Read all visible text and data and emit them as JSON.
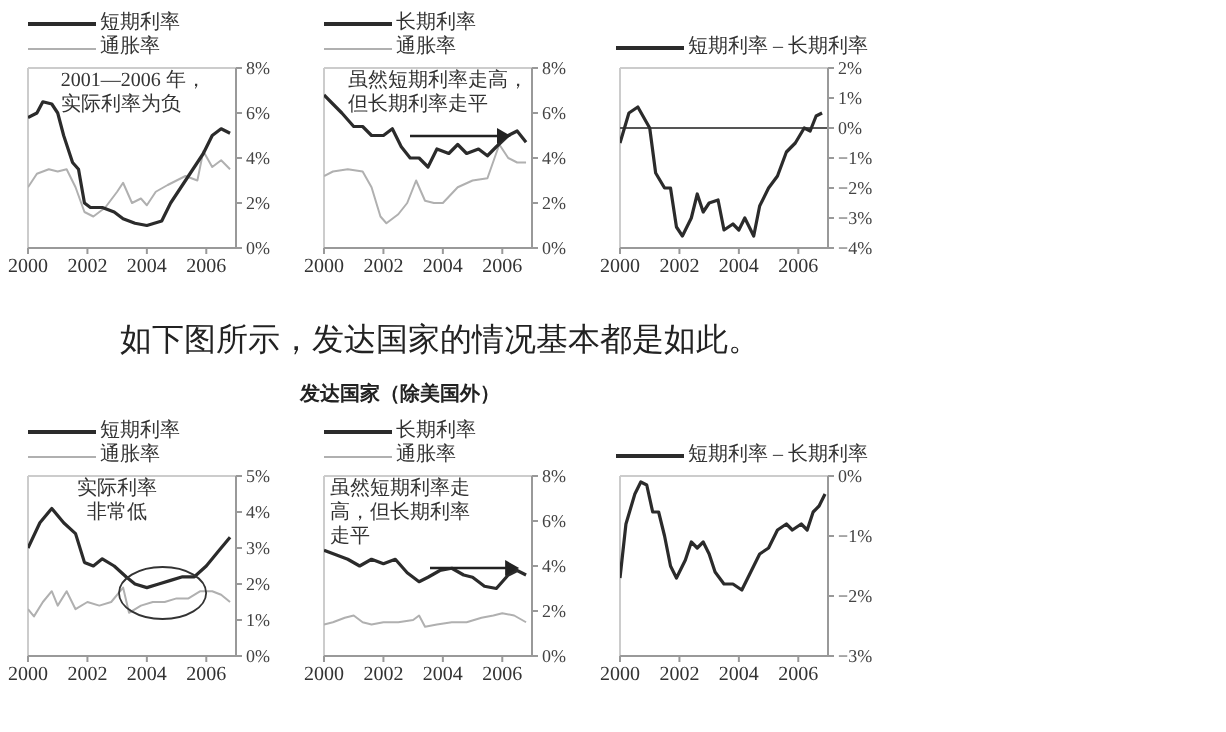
{
  "chart_data": [
    {
      "type": "line",
      "legend": "top left",
      "xlim": [
        2000,
        2007
      ],
      "xticks": [
        2000,
        2002,
        2004,
        2006
      ],
      "ylim": [
        0,
        8
      ],
      "yticks": [
        {
          "value": 0,
          "label": "0%"
        },
        {
          "value": 2,
          "label": "2%"
        },
        {
          "value": 4,
          "label": "4%"
        },
        {
          "value": 6,
          "label": "6%"
        },
        {
          "value": 8,
          "label": "8%"
        }
      ],
      "annotations": [
        "2001—2006 年，实际利率为负"
      ],
      "series": [
        {
          "name": "短期利率",
          "color": "#2b2b2b",
          "x": [
            2000,
            2000.3,
            2000.5,
            2000.8,
            2001,
            2001.2,
            2001.5,
            2001.7,
            2001.9,
            2002.1,
            2002.5,
            2002.9,
            2003.2,
            2003.6,
            2004,
            2004.5,
            2004.8,
            2005.2,
            2005.5,
            2005.9,
            2006.2,
            2006.5,
            2006.8
          ],
          "values": [
            5.8,
            6,
            6.5,
            6.4,
            6,
            5,
            3.8,
            3.5,
            2,
            1.8,
            1.8,
            1.6,
            1.3,
            1.1,
            1,
            1.2,
            2,
            2.8,
            3.4,
            4.2,
            5,
            5.3,
            5.1
          ]
        },
        {
          "name": "通胀率",
          "color": "#b0b0b0",
          "x": [
            2000,
            2000.3,
            2000.7,
            2001,
            2001.3,
            2001.6,
            2001.9,
            2002.2,
            2002.6,
            2003,
            2003.2,
            2003.5,
            2003.8,
            2004,
            2004.3,
            2004.7,
            2005,
            2005.3,
            2005.7,
            2005.9,
            2006.2,
            2006.5,
            2006.8
          ],
          "values": [
            2.7,
            3.3,
            3.5,
            3.4,
            3.5,
            2.7,
            1.6,
            1.4,
            1.8,
            2.5,
            2.9,
            2,
            2.2,
            1.9,
            2.5,
            2.8,
            3,
            3.2,
            3,
            4.3,
            3.6,
            3.9,
            3.5
          ]
        }
      ]
    },
    {
      "type": "line",
      "legend": "top left",
      "xlim": [
        2000,
        2007
      ],
      "xticks": [
        2000,
        2002,
        2004,
        2006
      ],
      "ylim": [
        0,
        8
      ],
      "yticks": [
        {
          "value": 0,
          "label": "0%"
        },
        {
          "value": 2,
          "label": "2%"
        },
        {
          "value": 4,
          "label": "4%"
        },
        {
          "value": 6,
          "label": "6%"
        },
        {
          "value": 8,
          "label": "8%"
        }
      ],
      "annotations": [
        "虽然短期利率走高，但长期利率走平"
      ],
      "series": [
        {
          "name": "长期利率",
          "color": "#2b2b2b",
          "x": [
            2000,
            2000.3,
            2000.6,
            2001,
            2001.3,
            2001.6,
            2002,
            2002.3,
            2002.6,
            2002.9,
            2003.2,
            2003.5,
            2003.8,
            2004.2,
            2004.5,
            2004.8,
            2005.2,
            2005.5,
            2005.8,
            2006.2,
            2006.5,
            2006.8
          ],
          "values": [
            6.8,
            6.4,
            6,
            5.4,
            5.4,
            5,
            5,
            5.3,
            4.5,
            4,
            4,
            3.6,
            4.4,
            4.2,
            4.6,
            4.2,
            4.4,
            4.1,
            4.5,
            5,
            5.2,
            4.7
          ]
        },
        {
          "name": "通胀率",
          "color": "#b0b0b0",
          "x": [
            2000,
            2000.3,
            2000.8,
            2001.3,
            2001.6,
            2001.9,
            2002.1,
            2002.5,
            2002.8,
            2003.1,
            2003.4,
            2003.7,
            2004,
            2004.5,
            2005,
            2005.5,
            2005.9,
            2006.2,
            2006.5,
            2006.8
          ],
          "values": [
            3.2,
            3.4,
            3.5,
            3.4,
            2.7,
            1.4,
            1.1,
            1.5,
            2,
            3,
            2.1,
            2,
            2,
            2.7,
            3,
            3.1,
            4.6,
            4,
            3.8,
            3.8
          ]
        }
      ]
    },
    {
      "type": "line",
      "legend": "top",
      "xlim": [
        2000,
        2007
      ],
      "xticks": [
        2000,
        2002,
        2004,
        2006
      ],
      "ylim": [
        -4,
        2
      ],
      "yticks": [
        {
          "value": -4,
          "label": "−4%"
        },
        {
          "value": -3,
          "label": "−3%"
        },
        {
          "value": -2,
          "label": "−2%"
        },
        {
          "value": -1,
          "label": "−1%"
        },
        {
          "value": 0,
          "label": "0%"
        },
        {
          "value": 1,
          "label": "1%"
        },
        {
          "value": 2,
          "label": "2%"
        }
      ],
      "ref_lines": [
        {
          "axis": "y",
          "value": 0,
          "label": null,
          "color": "#555555"
        }
      ],
      "series": [
        {
          "name": "短期利率 – 长期利率",
          "color": "#2b2b2b",
          "x": [
            2000,
            2000.3,
            2000.6,
            2001,
            2001.2,
            2001.5,
            2001.7,
            2001.9,
            2002.1,
            2002.4,
            2002.6,
            2002.8,
            2003,
            2003.3,
            2003.5,
            2003.8,
            2004,
            2004.2,
            2004.5,
            2004.7,
            2005,
            2005.3,
            2005.6,
            2005.9,
            2006.2,
            2006.4,
            2006.6,
            2006.8
          ],
          "values": [
            -0.5,
            0.5,
            0.7,
            0,
            -1.5,
            -2,
            -2,
            -3.3,
            -3.6,
            -3,
            -2.2,
            -2.8,
            -2.5,
            -2.4,
            -3.4,
            -3.2,
            -3.4,
            -3,
            -3.6,
            -2.6,
            -2,
            -1.6,
            -0.8,
            -0.5,
            0,
            -0.1,
            0.4,
            0.5
          ]
        }
      ]
    },
    {
      "type": "line",
      "title": "如下图所示，发达国家的情况基本都是如此。",
      "legend": "top left",
      "xlim": [
        2000,
        2007
      ],
      "xticks": [
        2000,
        2002,
        2004,
        2006
      ],
      "ylim": [
        0,
        5
      ],
      "yticks": [
        {
          "value": 0,
          "label": "0%"
        },
        {
          "value": 1,
          "label": "1%"
        },
        {
          "value": 2,
          "label": "2%"
        },
        {
          "value": 3,
          "label": "3%"
        },
        {
          "value": 4,
          "label": "4%"
        },
        {
          "value": 5,
          "label": "5%"
        }
      ],
      "annotations": [
        "实际利率非常低"
      ],
      "series": [
        {
          "name": "短期利率",
          "color": "#2b2b2b",
          "x": [
            2000,
            2000.4,
            2000.8,
            2001.2,
            2001.6,
            2001.9,
            2002.2,
            2002.5,
            2002.9,
            2003.3,
            2003.6,
            2004,
            2004.4,
            2004.8,
            2005.2,
            2005.6,
            2006,
            2006.4,
            2006.8
          ],
          "values": [
            3,
            3.7,
            4.1,
            3.7,
            3.4,
            2.6,
            2.5,
            2.7,
            2.5,
            2.2,
            2,
            1.9,
            2,
            2.1,
            2.2,
            2.2,
            2.5,
            2.9,
            3.3
          ]
        },
        {
          "name": "通胀率",
          "color": "#b0b0b0",
          "x": [
            2000,
            2000.2,
            2000.5,
            2000.8,
            2001,
            2001.3,
            2001.6,
            2002,
            2002.4,
            2002.8,
            2003.2,
            2003.4,
            2003.8,
            2004.2,
            2004.6,
            2005,
            2005.4,
            2005.8,
            2006.2,
            2006.5,
            2006.8
          ],
          "values": [
            1.3,
            1.1,
            1.5,
            1.8,
            1.4,
            1.8,
            1.3,
            1.5,
            1.4,
            1.5,
            1.9,
            1.2,
            1.4,
            1.5,
            1.5,
            1.6,
            1.6,
            1.8,
            1.8,
            1.7,
            1.5
          ]
        }
      ]
    },
    {
      "type": "line",
      "title": "发达国家（除美国外）",
      "legend": "top left",
      "xlim": [
        2000,
        2007
      ],
      "xticks": [
        2000,
        2002,
        2004,
        2006
      ],
      "ylim": [
        0,
        8
      ],
      "yticks": [
        {
          "value": 0,
          "label": "0%"
        },
        {
          "value": 2,
          "label": "2%"
        },
        {
          "value": 4,
          "label": "4%"
        },
        {
          "value": 6,
          "label": "6%"
        },
        {
          "value": 8,
          "label": "8%"
        }
      ],
      "annotations": [
        "虽然短期利率走高，但长期利率走平"
      ],
      "series": [
        {
          "name": "长期利率",
          "color": "#2b2b2b",
          "x": [
            2000,
            2000.4,
            2000.8,
            2001.2,
            2001.6,
            2002,
            2002.4,
            2002.8,
            2003.2,
            2003.5,
            2003.9,
            2004.3,
            2004.7,
            2005,
            2005.4,
            2005.8,
            2006.2,
            2006.5,
            2006.8
          ],
          "values": [
            4.7,
            4.5,
            4.3,
            4,
            4.3,
            4.1,
            4.3,
            3.7,
            3.3,
            3.5,
            3.8,
            3.9,
            3.6,
            3.5,
            3.1,
            3,
            3.6,
            3.8,
            3.6
          ]
        },
        {
          "name": "通胀率",
          "color": "#b0b0b0",
          "x": [
            2000,
            2000.3,
            2000.7,
            2001,
            2001.3,
            2001.6,
            2002,
            2002.5,
            2003,
            2003.2,
            2003.4,
            2003.8,
            2004.3,
            2004.8,
            2005.3,
            2005.7,
            2006,
            2006.4,
            2006.8
          ],
          "values": [
            1.4,
            1.5,
            1.7,
            1.8,
            1.5,
            1.4,
            1.5,
            1.5,
            1.6,
            1.8,
            1.3,
            1.4,
            1.5,
            1.5,
            1.7,
            1.8,
            1.9,
            1.8,
            1.5
          ]
        }
      ]
    },
    {
      "type": "line",
      "legend": "top",
      "xlim": [
        2000,
        2007
      ],
      "xticks": [
        2000,
        2002,
        2004,
        2006
      ],
      "ylim": [
        -3,
        0
      ],
      "yticks": [
        {
          "value": -3,
          "label": "−3%"
        },
        {
          "value": -2,
          "label": "−2%"
        },
        {
          "value": -1,
          "label": "−1%"
        },
        {
          "value": 0,
          "label": "0%"
        }
      ],
      "series": [
        {
          "name": "短期利率 – 长期利率",
          "color": "#2b2b2b",
          "x": [
            2000,
            2000.2,
            2000.5,
            2000.7,
            2000.9,
            2001.1,
            2001.3,
            2001.5,
            2001.7,
            2001.9,
            2002.2,
            2002.4,
            2002.6,
            2002.8,
            2003,
            2003.2,
            2003.5,
            2003.8,
            2004.1,
            2004.4,
            2004.7,
            2005,
            2005.3,
            2005.6,
            2005.8,
            2006.1,
            2006.3,
            2006.5,
            2006.7,
            2006.9
          ],
          "values": [
            -1.7,
            -0.8,
            -0.3,
            -0.1,
            -0.15,
            -0.6,
            -0.6,
            -1,
            -1.5,
            -1.7,
            -1.4,
            -1.1,
            -1.2,
            -1.1,
            -1.3,
            -1.6,
            -1.8,
            -1.8,
            -1.9,
            -1.6,
            -1.3,
            -1.2,
            -0.9,
            -0.8,
            -0.9,
            -0.8,
            -0.9,
            -0.6,
            -0.5,
            -0.3
          ]
        }
      ]
    }
  ]
}
